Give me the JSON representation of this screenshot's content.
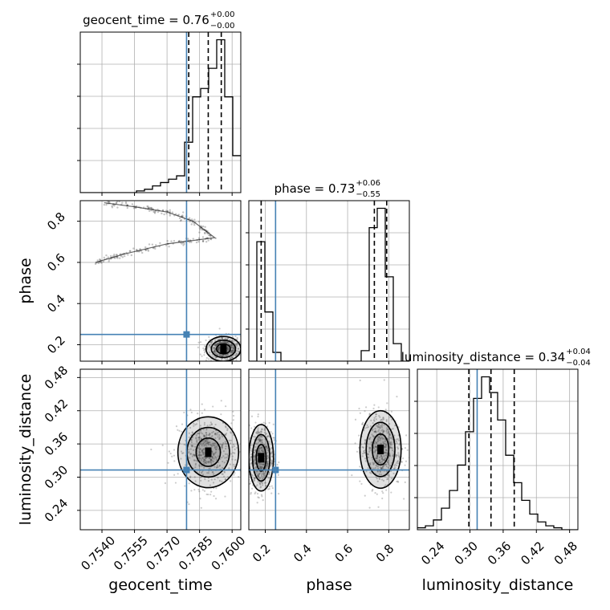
{
  "chart_data": {
    "type": "corner",
    "parameters": [
      "geocent_time",
      "phase",
      "luminosity_distance"
    ],
    "truth_color": "#4682b4",
    "truths": {
      "geocent_time": 0.7579,
      "phase": 0.25,
      "luminosity_distance": 0.313
    },
    "titles": [
      {
        "param": "geocent_time",
        "label": "geocent_time = 0.76",
        "plus": "+0.00",
        "minus": "−0.00"
      },
      {
        "param": "phase",
        "label": "phase = 0.73",
        "plus": "+0.06",
        "minus": "−0.55"
      },
      {
        "param": "luminosity_distance",
        "label": "luminosity_distance = 0.34",
        "plus": "+0.04",
        "minus": "−0.04"
      }
    ],
    "axis_ranges": {
      "geocent_time": [
        0.753,
        0.7604
      ],
      "phase": [
        0.12,
        0.9
      ],
      "luminosity_distance": [
        0.205,
        0.495
      ]
    },
    "ticks": {
      "geocent_time": [
        "0.7540",
        "0.7555",
        "0.7570",
        "0.7585",
        "0.7600"
      ],
      "phase": [
        "0.2",
        "0.4",
        "0.6",
        "0.8"
      ],
      "luminosity_distance": [
        "0.24",
        "0.30",
        "0.36",
        "0.42",
        "0.48"
      ]
    },
    "quantiles": {
      "geocent_time": [
        0.758,
        0.7589,
        0.7595
      ],
      "phase": [
        0.18,
        0.73,
        0.79
      ],
      "luminosity_distance": [
        0.298,
        0.338,
        0.38
      ]
    },
    "histograms": {
      "geocent_time": {
        "edges": [
          0.753,
          0.75337,
          0.75374,
          0.75411,
          0.75448,
          0.75485,
          0.75522,
          0.75559,
          0.75596,
          0.75633,
          0.7567,
          0.75707,
          0.75744,
          0.75781,
          0.75818,
          0.75855,
          0.75892,
          0.75929,
          0.75966,
          0.76003,
          0.7604
        ],
        "counts": [
          0,
          0,
          0,
          0,
          0,
          0,
          0,
          1,
          2,
          4,
          6,
          8,
          10,
          30,
          57,
          62,
          74,
          91,
          57,
          22
        ]
      },
      "phase": {
        "edges": [
          0.12,
          0.159,
          0.198,
          0.237,
          0.276,
          0.315,
          0.354,
          0.393,
          0.432,
          0.471,
          0.51,
          0.549,
          0.588,
          0.627,
          0.666,
          0.705,
          0.744,
          0.783,
          0.822,
          0.861,
          0.9
        ],
        "counts": [
          0,
          68,
          28,
          5,
          0,
          0,
          0,
          0,
          0,
          0,
          0,
          0,
          0,
          0,
          6,
          76,
          87,
          48,
          10,
          0
        ]
      },
      "luminosity_distance": {
        "edges": [
          0.205,
          0.2195,
          0.234,
          0.2485,
          0.263,
          0.2775,
          0.292,
          0.3065,
          0.321,
          0.3355,
          0.35,
          0.3645,
          0.379,
          0.3935,
          0.408,
          0.4225,
          0.437,
          0.4515,
          0.466,
          0.4805,
          0.495
        ],
        "counts": [
          1,
          2,
          5,
          11,
          20,
          33,
          50,
          67,
          78,
          70,
          56,
          38,
          24,
          15,
          8,
          4,
          2,
          1,
          0,
          0
        ]
      }
    },
    "scatter_clusters": [
      {
        "x": "geocent_time",
        "y": "phase",
        "shape": "arc",
        "points": [
          [
            0.7541,
            0.89
          ],
          [
            0.7555,
            0.87
          ],
          [
            0.757,
            0.845
          ],
          [
            0.7582,
            0.8
          ],
          [
            0.7592,
            0.72
          ],
          [
            0.757,
            0.69
          ],
          [
            0.755,
            0.64
          ],
          [
            0.7537,
            0.6
          ]
        ]
      },
      {
        "x": "geocent_time",
        "y": "phase",
        "shape": "blob",
        "center": [
          0.7596,
          0.18
        ],
        "spread": [
          0.0004,
          0.03
        ]
      },
      {
        "x": "geocent_time",
        "y": "luminosity_distance",
        "shape": "blob",
        "center": [
          0.7589,
          0.345
        ],
        "spread": [
          0.0007,
          0.032
        ]
      },
      {
        "x": "phase",
        "y": "luminosity_distance",
        "shape": "blob",
        "center": [
          0.18,
          0.335
        ],
        "spread": [
          0.03,
          0.03
        ]
      },
      {
        "x": "phase",
        "y": "luminosity_distance",
        "shape": "blob",
        "center": [
          0.76,
          0.35
        ],
        "spread": [
          0.05,
          0.035
        ]
      }
    ]
  }
}
